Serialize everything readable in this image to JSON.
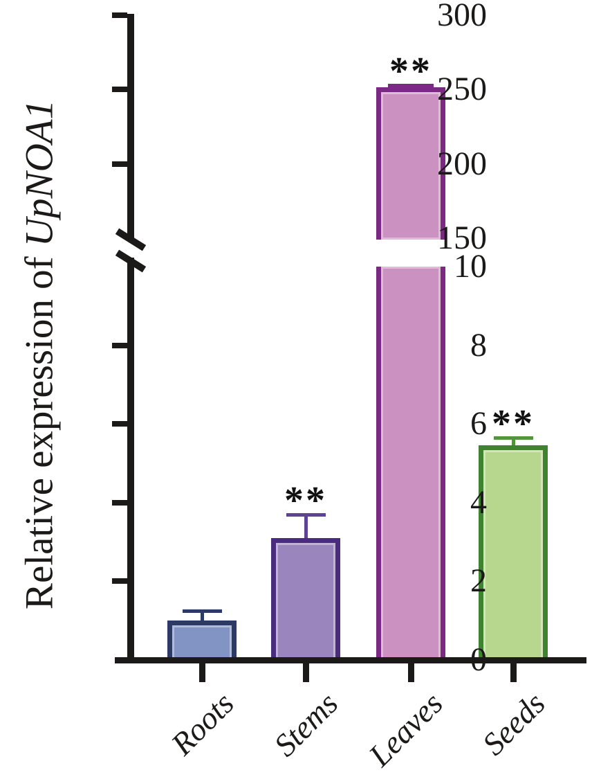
{
  "figure": {
    "background": "#ffffff",
    "axis_color": "#1b1a19",
    "significance_color": "#111111"
  },
  "y_axis": {
    "title_regular": "Relative expression of ",
    "title_italic": "UpNOA1",
    "upper_ticks": [
      300,
      250,
      200,
      150
    ],
    "lower_ticks": [
      10,
      8,
      6,
      4,
      2,
      0
    ]
  },
  "chart_data": {
    "type": "bar",
    "title": "",
    "xlabel": "",
    "ylabel": "Relative expression of UpNOA1",
    "categories": [
      "Roots",
      "Stems",
      "Leaves",
      "Seeds"
    ],
    "values": [
      1.0,
      3.1,
      250,
      5.45
    ],
    "errors": [
      0.25,
      0.6,
      2,
      0.2
    ],
    "significance": [
      "",
      "**",
      "**",
      "**"
    ],
    "axis_break": {
      "lower_range": [
        0,
        10
      ],
      "upper_range": [
        150,
        300
      ],
      "lower_ticks": [
        0,
        2,
        4,
        6,
        8,
        10
      ],
      "upper_ticks": [
        150,
        200,
        250,
        300
      ]
    },
    "grid": false,
    "legend": "none",
    "bars": [
      {
        "label": "Roots",
        "fill": "#8294c3",
        "border": "#2e3a66",
        "error_color": "#2e3a66"
      },
      {
        "label": "Stems",
        "fill": "#9b85bd",
        "border": "#4a2c7e",
        "error_color": "#5e4394"
      },
      {
        "label": "Leaves",
        "fill": "#cb92c1",
        "border": "#7b2a83",
        "error_color": "#7b2a83"
      },
      {
        "label": "Seeds",
        "fill": "#b6d78d",
        "border": "#3f8230",
        "error_color": "#55943f"
      }
    ]
  }
}
